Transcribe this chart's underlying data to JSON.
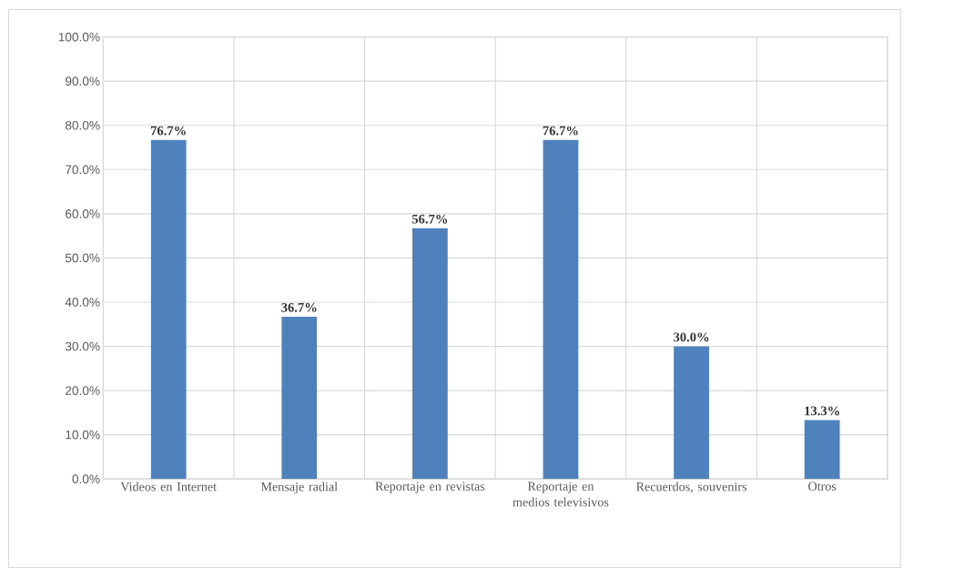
{
  "chart_data": {
    "type": "bar",
    "categories": [
      "Videos en Internet",
      "Mensaje radial",
      "Reportaje en revistas",
      "Reportaje en medios televisivos",
      "Recuerdos, souvenirs",
      "Otros"
    ],
    "values": [
      76.7,
      36.7,
      56.7,
      76.7,
      30.0,
      13.3
    ],
    "value_labels": [
      "76.7%",
      "36.7%",
      "56.7%",
      "76.7%",
      "30.0%",
      "13.3%"
    ],
    "color": "#4f81bd",
    "ylim": [
      0,
      100
    ],
    "yticks": [
      {
        "value": 0,
        "label": "0.0%"
      },
      {
        "value": 10,
        "label": "10.0%"
      },
      {
        "value": 20,
        "label": "20.0%"
      },
      {
        "value": 30,
        "label": "30.0%"
      },
      {
        "value": 40,
        "label": "40.0%"
      },
      {
        "value": 50,
        "label": "50.0%"
      },
      {
        "value": 60,
        "label": "60.0%"
      },
      {
        "value": 70,
        "label": "70.0%"
      },
      {
        "value": 80,
        "label": "80.0%"
      },
      {
        "value": 90,
        "label": "90.0%"
      },
      {
        "value": 100,
        "label": "100.0%"
      }
    ],
    "grid": true
  }
}
